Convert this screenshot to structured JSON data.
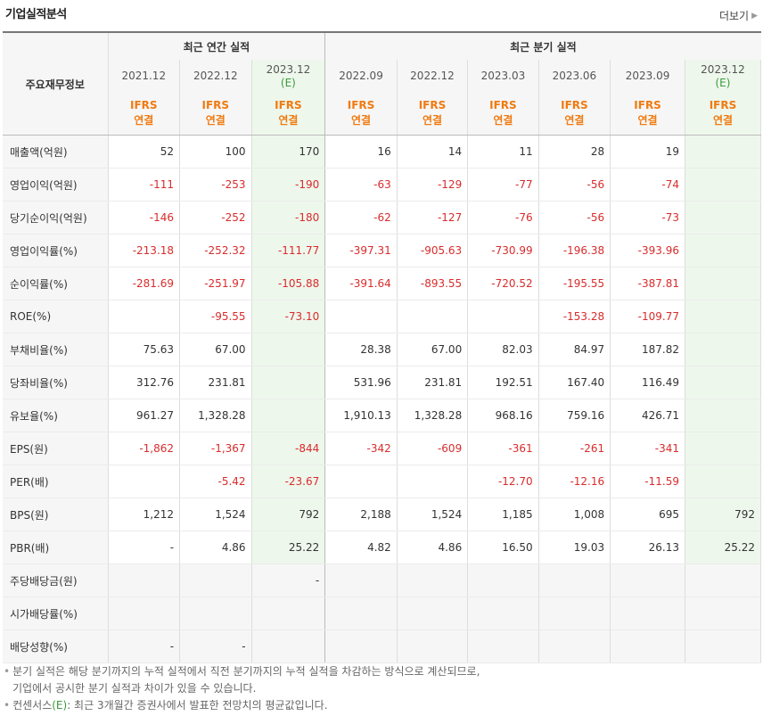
{
  "section_title": "기업실적분석",
  "more_link": "더보기",
  "header": {
    "main_label": "주요재무정보",
    "annual_label": "최근 연간 실적",
    "quarter_label": "최근 분기 실적",
    "periods": [
      "2021.12",
      "2022.12",
      "2023.12",
      "2022.09",
      "2022.12",
      "2023.03",
      "2023.06",
      "2023.09",
      "2023.12"
    ],
    "estimate_mark": "(E)",
    "ifrs_line1": "IFRS",
    "ifrs_line2": "연결"
  },
  "rows": [
    {
      "label": "매출액(억원)",
      "values": [
        "52",
        "100",
        "170",
        "16",
        "14",
        "11",
        "28",
        "19",
        ""
      ]
    },
    {
      "label": "영업이익(억원)",
      "values": [
        "-111",
        "-253",
        "-190",
        "-63",
        "-129",
        "-77",
        "-56",
        "-74",
        ""
      ]
    },
    {
      "label": "당기순이익(억원)",
      "values": [
        "-146",
        "-252",
        "-180",
        "-62",
        "-127",
        "-76",
        "-56",
        "-73",
        ""
      ]
    },
    {
      "label": "영업이익률(%)",
      "values": [
        "-213.18",
        "-252.32",
        "-111.77",
        "-397.31",
        "-905.63",
        "-730.99",
        "-196.38",
        "-393.96",
        ""
      ]
    },
    {
      "label": "순이익률(%)",
      "values": [
        "-281.69",
        "-251.97",
        "-105.88",
        "-391.64",
        "-893.55",
        "-720.52",
        "-195.55",
        "-387.81",
        ""
      ]
    },
    {
      "label": "ROE(%)",
      "values": [
        "",
        "-95.55",
        "-73.10",
        "",
        "",
        "",
        "-153.28",
        "-109.77",
        ""
      ]
    },
    {
      "label": "부채비율(%)",
      "values": [
        "75.63",
        "67.00",
        "",
        "28.38",
        "67.00",
        "82.03",
        "84.97",
        "187.82",
        ""
      ]
    },
    {
      "label": "당좌비율(%)",
      "values": [
        "312.76",
        "231.81",
        "",
        "531.96",
        "231.81",
        "192.51",
        "167.40",
        "116.49",
        ""
      ]
    },
    {
      "label": "유보율(%)",
      "values": [
        "961.27",
        "1,328.28",
        "",
        "1,910.13",
        "1,328.28",
        "968.16",
        "759.16",
        "426.71",
        ""
      ]
    },
    {
      "label": "EPS(원)",
      "values": [
        "-1,862",
        "-1,367",
        "-844",
        "-342",
        "-609",
        "-361",
        "-261",
        "-341",
        ""
      ]
    },
    {
      "label": "PER(배)",
      "values": [
        "",
        "-5.42",
        "-23.67",
        "",
        "",
        "-12.70",
        "-12.16",
        "-11.59",
        ""
      ]
    },
    {
      "label": "BPS(원)",
      "values": [
        "1,212",
        "1,524",
        "792",
        "2,188",
        "1,524",
        "1,185",
        "1,008",
        "695",
        "792"
      ]
    },
    {
      "label": "PBR(배)",
      "values": [
        "-",
        "4.86",
        "25.22",
        "4.82",
        "4.86",
        "16.50",
        "19.03",
        "26.13",
        "25.22"
      ]
    },
    {
      "label": "주당배당금(원)",
      "values": [
        "",
        "",
        "-",
        "",
        "",
        "",
        "",
        "",
        ""
      ]
    },
    {
      "label": "시가배당률(%)",
      "values": [
        "",
        "",
        "",
        "",
        "",
        "",
        "",
        "",
        ""
      ]
    },
    {
      "label": "배당성향(%)",
      "values": [
        "-",
        "-",
        "",
        "",
        "",
        "",
        "",
        "",
        ""
      ]
    }
  ],
  "footnotes": {
    "line1": "분기 실적은 해당 분기까지의 누적 실적에서 직전 분기까지의 누적 실적을 차감하는 방식으로 계산되므로,",
    "line2": "기업에서 공시한 분기 실적과 차이가 있을 수 있습니다.",
    "line3_prefix": "컨센서스",
    "line3_mark": "(E)",
    "line3_suffix": ": 최근 3개월간 증권사에서 발표한 전망치의 평균값입니다."
  },
  "colors": {
    "negative": "#d92c2c",
    "ifrs": "#f07a10",
    "estimate": "#3c9a3c",
    "estimate_bg": "#eef7ec"
  }
}
